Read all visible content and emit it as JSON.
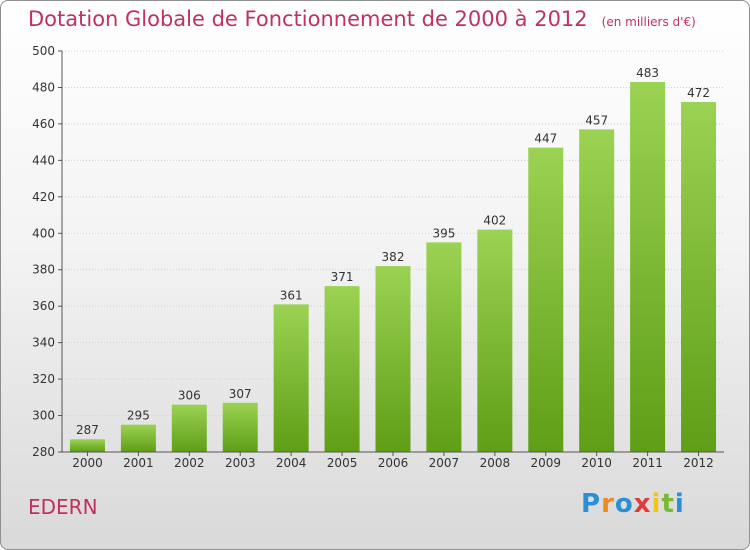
{
  "title": "Dotation Globale de Fonctionnement de 2000 à 2012",
  "subtitle": "(en milliers d'€)",
  "commune": "EDERN",
  "brand": {
    "letters": [
      "P",
      "r",
      "o",
      "x",
      "i",
      "t",
      "i"
    ],
    "colors": [
      "#2a8fd6",
      "#f08a1c",
      "#2a8fd6",
      "#e23b3b",
      "#f0c419",
      "#7ab934",
      "#2a8fd6"
    ]
  },
  "colors": {
    "title": "#c0325d",
    "bar_top": "#9bd253",
    "bar_bottom": "#5f9e16",
    "grid": "#d0d0d0"
  },
  "chart_data": {
    "type": "bar",
    "categories": [
      "2000",
      "2001",
      "2002",
      "2003",
      "2004",
      "2005",
      "2006",
      "2007",
      "2008",
      "2009",
      "2010",
      "2011",
      "2012"
    ],
    "values": [
      287,
      295,
      306,
      307,
      361,
      371,
      382,
      395,
      402,
      447,
      457,
      483,
      472
    ],
    "ylim": [
      280,
      500
    ],
    "yticks": [
      280,
      300,
      320,
      340,
      360,
      380,
      400,
      420,
      440,
      460,
      480,
      500
    ],
    "grid": true
  }
}
